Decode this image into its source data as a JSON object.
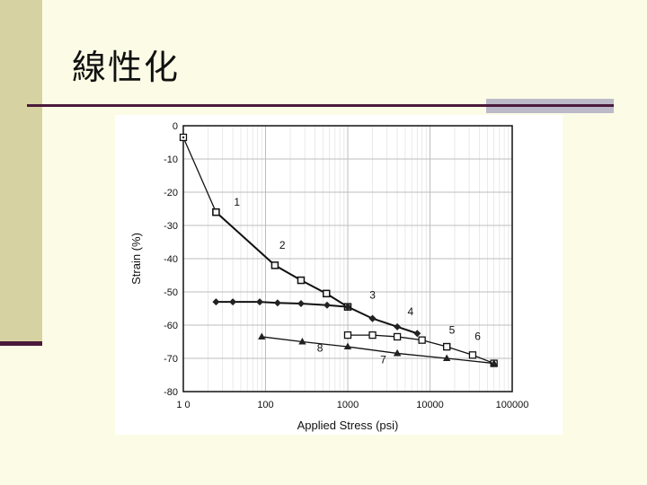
{
  "slide": {
    "title": "線性化",
    "colors": {
      "background": "#fcfce6",
      "sidebar": "#d6d2a2",
      "rule": "#4a1a3a",
      "accent": "#bcbac8"
    }
  },
  "chart_data": {
    "type": "line",
    "xlabel": "Applied Stress (psi)",
    "ylabel": "Strain (%)",
    "xscale": "log",
    "xlim": [
      10,
      100000
    ],
    "ylim": [
      -80,
      0
    ],
    "xticks": [
      10,
      100,
      1000,
      10000,
      100000
    ],
    "xtick_labels": [
      "1 0",
      "100",
      "1000",
      "10000",
      "100000"
    ],
    "yticks": [
      0,
      -10,
      -20,
      -30,
      -40,
      -50,
      -60,
      -70,
      -80
    ],
    "ytick_labels": [
      "0",
      "-10",
      "-20",
      "-30",
      "-40",
      "-50",
      "-60",
      "-70",
      "-80"
    ],
    "grid": true,
    "series": [
      {
        "name": "1",
        "marker": "square-dot",
        "x": [
          10,
          25
        ],
        "y": [
          -3.5,
          -26
        ]
      },
      {
        "name": "2",
        "marker": "square",
        "x": [
          25,
          130,
          270,
          550,
          1000
        ],
        "y": [
          -26,
          -42,
          -46.5,
          -50.5,
          -54.5
        ]
      },
      {
        "name": "3",
        "marker": "diamond",
        "x": [
          25,
          40,
          85,
          140,
          270,
          560,
          1000,
          2000
        ],
        "y": [
          -53,
          -53,
          -53,
          -53.3,
          -53.5,
          -54,
          -54.5,
          -58
        ]
      },
      {
        "name": "4",
        "marker": "diamond",
        "x": [
          2000,
          4000,
          7000
        ],
        "y": [
          -58,
          -60.5,
          -62.5
        ]
      },
      {
        "name": "5",
        "marker": "square-open",
        "x": [
          1000,
          2000,
          4000,
          8000,
          16000
        ],
        "y": [
          -63,
          -63,
          -63.5,
          -64.5,
          -66.5
        ]
      },
      {
        "name": "6",
        "marker": "square-open",
        "x": [
          16000,
          33000,
          60000
        ],
        "y": [
          -66.5,
          -69,
          -71.5
        ]
      },
      {
        "name": "7",
        "marker": "triangle",
        "x": [
          4000,
          16000,
          60000
        ],
        "y": [
          -68.5,
          -70,
          -71.5
        ]
      },
      {
        "name": "8",
        "marker": "triangle",
        "x": [
          90,
          280,
          1000,
          4000
        ],
        "y": [
          -63.5,
          -65,
          -66.5,
          -68.5
        ]
      }
    ],
    "annotations": [
      {
        "text": "1",
        "x": 45,
        "y": -24
      },
      {
        "text": "2",
        "x": 160,
        "y": -37
      },
      {
        "text": "3",
        "x": 2000,
        "y": -52
      },
      {
        "text": "4",
        "x": 5800,
        "y": -57
      },
      {
        "text": "5",
        "x": 18500,
        "y": -62.5
      },
      {
        "text": "6",
        "x": 38000,
        "y": -64.5
      },
      {
        "text": "8",
        "x": 460,
        "y": -68
      },
      {
        "text": "7",
        "x": 2700,
        "y": -71.5
      }
    ]
  }
}
